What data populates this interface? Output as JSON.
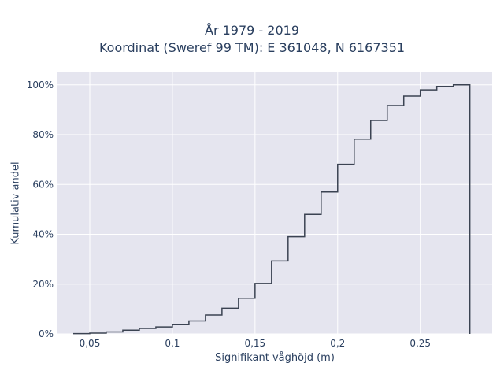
{
  "chart_data": {
    "type": "line",
    "subtype": "step-ecdf",
    "title_lines": [
      "År 1979 - 2019",
      "Koordinat (Sweref 99 TM): E 361048, N 6167351"
    ],
    "xlabel": "Signifikant våghöjd (m)",
    "ylabel": "Kumulativ andel",
    "xlim": [
      0.03,
      0.2935
    ],
    "ylim": [
      0,
      1.05
    ],
    "x_ticks": [
      0.05,
      0.1,
      0.15,
      0.2,
      0.25
    ],
    "x_tick_labels": [
      "0,05",
      "0,1",
      "0,15",
      "0,2",
      "0,25"
    ],
    "y_ticks": [
      0,
      0.2,
      0.4,
      0.6,
      0.8,
      1.0
    ],
    "y_tick_labels": [
      "0%",
      "20%",
      "40%",
      "60%",
      "80%",
      "100%"
    ],
    "grid": true,
    "legend": "none",
    "x": [
      0.04,
      0.05,
      0.06,
      0.07,
      0.08,
      0.09,
      0.1,
      0.11,
      0.12,
      0.13,
      0.14,
      0.15,
      0.16,
      0.17,
      0.18,
      0.19,
      0.2,
      0.21,
      0.22,
      0.23,
      0.24,
      0.25,
      0.26,
      0.27,
      0.28
    ],
    "values": [
      0.001,
      0.003,
      0.008,
      0.015,
      0.022,
      0.028,
      0.037,
      0.052,
      0.076,
      0.103,
      0.143,
      0.203,
      0.293,
      0.39,
      0.48,
      0.57,
      0.681,
      0.782,
      0.857,
      0.917,
      0.955,
      0.98,
      0.994,
      1.0,
      1.0
    ],
    "end_drop_x": 0.28,
    "colors": {
      "line": "#3b4352",
      "plot_bg": "#e5e5ef",
      "grid": "#ffffff",
      "text": "#2a3f5f"
    }
  }
}
